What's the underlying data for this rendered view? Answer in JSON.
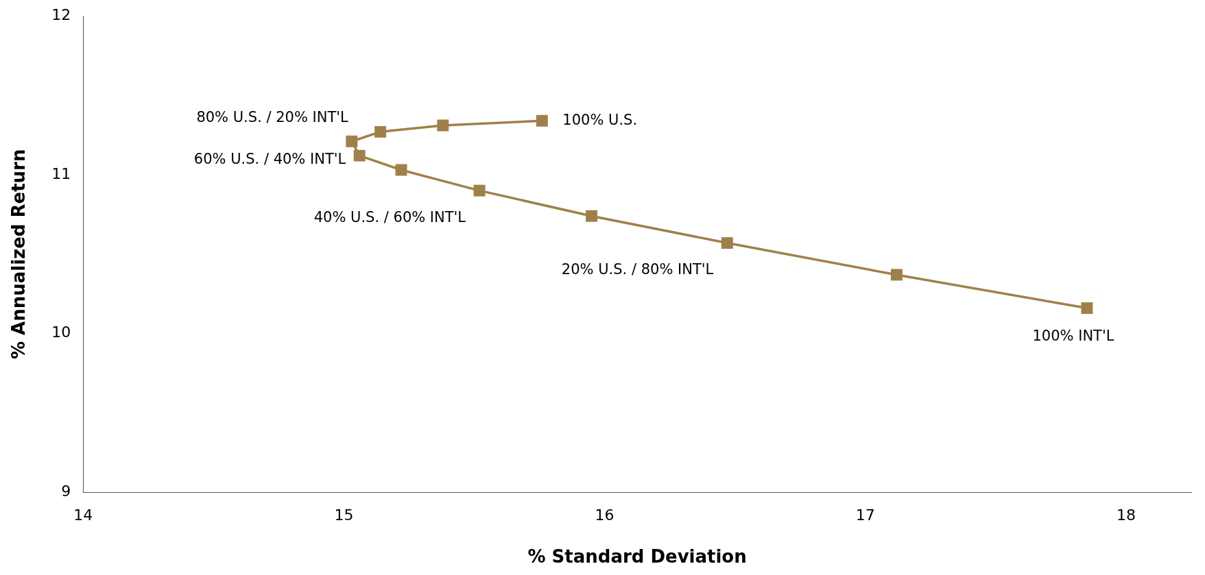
{
  "chart_data": {
    "type": "line",
    "xlabel": "% Standard Deviation",
    "ylabel": "% Annualized Return",
    "x": [
      15.76,
      15.38,
      15.14,
      15.03,
      15.06,
      15.22,
      15.52,
      15.95,
      16.47,
      17.12,
      17.85
    ],
    "series": [
      {
        "color": "#a0804a",
        "values": [
          11.34,
          11.31,
          11.27,
          11.21,
          11.12,
          11.03,
          10.9,
          10.74,
          10.57,
          10.37,
          10.16
        ]
      }
    ],
    "xlim": [
      14,
      18.25
    ],
    "xticks": [
      14,
      15,
      16,
      17,
      18
    ],
    "ylim": [
      9,
      12
    ],
    "yticks": [
      9,
      10,
      11,
      12
    ],
    "grid": false,
    "legend": false,
    "marker": "square",
    "line_style": "solid",
    "annotations": [
      {
        "text": "100% U.S.",
        "x": 15.76,
        "y": 11.34
      },
      {
        "text": "80% U.S. / 20% INT'L",
        "x": 15.03,
        "y": 11.21
      },
      {
        "text": "60% U.S. / 40% INT'L",
        "x": 15.06,
        "y": 11.12
      },
      {
        "text": "40% U.S. / 60% INT'L",
        "x": 15.52,
        "y": 10.9
      },
      {
        "text": "20% U.S. / 80% INT'L",
        "x": 16.47,
        "y": 10.57
      },
      {
        "text": "100% INT'L",
        "x": 17.85,
        "y": 10.16
      }
    ]
  }
}
